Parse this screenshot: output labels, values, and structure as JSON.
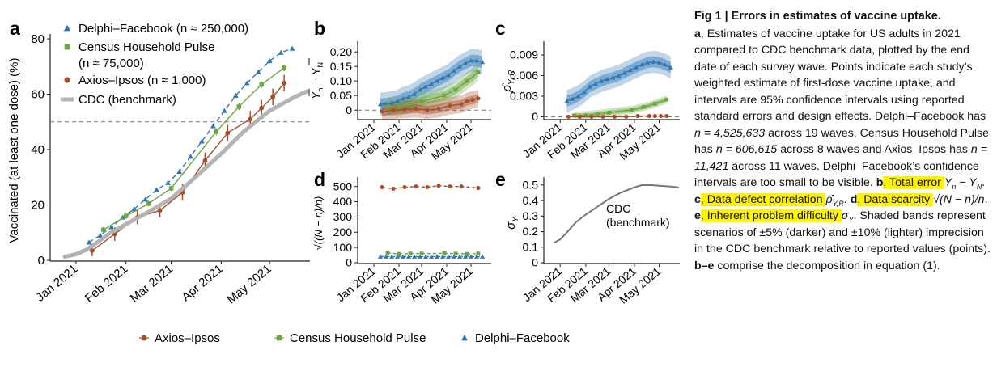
{
  "colors": {
    "delphi": "#2f77b4",
    "census": "#6da540",
    "axios": "#a3502b",
    "cdc": "#b3b3b3",
    "highlight": "#fff200"
  },
  "legend_bottom": [
    "Axios–Ipsos",
    "Census Household Pulse",
    "Delphi–Facebook"
  ],
  "chart_data": [
    {
      "id": "a",
      "panel_letter": "a",
      "type": "line",
      "ylabel": "Vaccinated (at least one dose) (%)",
      "xlabel": "",
      "x_ticks": [
        "Jan 2021",
        "Feb 2021",
        "Mar 2021",
        "Apr 2021",
        "May 2021"
      ],
      "y_ticks": [
        "0",
        "20",
        "40",
        "60",
        "80"
      ],
      "ylim": [
        0,
        80
      ],
      "xlim": [
        "2020-12-20",
        "2021-05-26"
      ],
      "reference_line": 50,
      "legend_position": "top-left",
      "legend": [
        {
          "label": "Delphi–Facebook",
          "n_text": "(n ≈ 250,000)"
        },
        {
          "label": "Census Household Pulse",
          "n_text": "(n ≈ 75,000)"
        },
        {
          "label": "Axios–Ipsos",
          "n_text": "(n ≈ 1,000)"
        },
        {
          "label": "CDC (benchmark)",
          "n_text": ""
        }
      ],
      "series": [
        {
          "name": "Delphi–Facebook",
          "marker": "triangle",
          "x": [
            "2021-01-09",
            "2021-01-16",
            "2021-01-23",
            "2021-01-30",
            "2021-02-06",
            "2021-02-13",
            "2021-02-20",
            "2021-02-27",
            "2021-03-06",
            "2021-03-13",
            "2021-03-20",
            "2021-03-27",
            "2021-04-03",
            "2021-04-10",
            "2021-04-17",
            "2021-04-24",
            "2021-05-01",
            "2021-05-08",
            "2021-05-15"
          ],
          "y": [
            6.5,
            9,
            12,
            15.5,
            18.5,
            22,
            25.5,
            28,
            32,
            37.5,
            43,
            48.5,
            54,
            59.5,
            64,
            68,
            72,
            75,
            76.5
          ]
        },
        {
          "name": "Census Household Pulse",
          "marker": "square",
          "x": [
            "2021-01-18",
            "2021-02-01",
            "2021-02-15",
            "2021-03-01",
            "2021-03-29",
            "2021-04-12",
            "2021-04-26",
            "2021-05-10"
          ],
          "y": [
            11,
            16,
            20.5,
            26,
            46.5,
            55.5,
            63.5,
            69.5
          ],
          "err": [
            1,
            1,
            1,
            1,
            1.2,
            1.2,
            1.2,
            1.2
          ]
        },
        {
          "name": "Axios–Ipsos",
          "marker": "circle",
          "x": [
            "2021-01-11",
            "2021-01-25",
            "2021-02-08",
            "2021-02-22",
            "2021-03-08",
            "2021-03-22",
            "2021-04-05",
            "2021-04-19",
            "2021-04-26",
            "2021-05-03",
            "2021-05-10"
          ],
          "y": [
            3.5,
            9.5,
            15.5,
            18,
            24.5,
            36,
            46,
            51,
            55,
            59,
            64
          ],
          "err": [
            2,
            2.5,
            2.5,
            2.5,
            3,
            3,
            3,
            3,
            3,
            3,
            3
          ]
        },
        {
          "name": "CDC (benchmark)",
          "marker": "none",
          "x": [
            "2020-12-25",
            "2021-01-01",
            "2021-01-08",
            "2021-01-15",
            "2021-01-22",
            "2021-02-01",
            "2021-02-15",
            "2021-03-01",
            "2021-03-15",
            "2021-04-01",
            "2021-04-15",
            "2021-05-01",
            "2021-05-15",
            "2021-05-24"
          ],
          "y": [
            1.3,
            2.2,
            4.0,
            6.8,
            9.8,
            13.0,
            17.5,
            22.3,
            29.5,
            38.5,
            46.5,
            54.0,
            58.5,
            61.0
          ]
        }
      ]
    },
    {
      "id": "b",
      "panel_letter": "b",
      "type": "line",
      "ylabel_main": "Y",
      "ylabel_suffix": "n",
      "ylabel_rest": " − Y",
      "ylabel_suffix2": "N",
      "x_ticks": [
        "Jan 2021",
        "Feb 2021",
        "Mar 2021",
        "Apr 2021",
        "May 2021"
      ],
      "y_ticks": [
        "0",
        "0.05",
        "0.10",
        "0.15",
        "0.20"
      ],
      "ylim": [
        -0.03,
        0.22
      ],
      "xlim": [
        "2020-12-20",
        "2021-05-26"
      ],
      "reference_line": 0,
      "series": [
        {
          "name": "Delphi–Facebook",
          "marker": "triangle",
          "x": [
            "2021-01-09",
            "2021-01-16",
            "2021-01-23",
            "2021-01-30",
            "2021-02-06",
            "2021-02-13",
            "2021-02-20",
            "2021-02-27",
            "2021-03-06",
            "2021-03-13",
            "2021-03-20",
            "2021-03-27",
            "2021-04-03",
            "2021-04-10",
            "2021-04-17",
            "2021-04-24",
            "2021-05-01",
            "2021-05-08",
            "2021-05-15"
          ],
          "y": [
            0.02,
            0.022,
            0.025,
            0.03,
            0.04,
            0.045,
            0.055,
            0.07,
            0.08,
            0.09,
            0.1,
            0.11,
            0.12,
            0.135,
            0.15,
            0.16,
            0.17,
            0.17,
            0.165
          ],
          "band_inner": 0.02,
          "band_outer": 0.04
        },
        {
          "name": "Census Household Pulse",
          "marker": "square",
          "x": [
            "2021-01-18",
            "2021-02-01",
            "2021-02-15",
            "2021-03-01",
            "2021-03-29",
            "2021-04-12",
            "2021-04-26",
            "2021-05-10"
          ],
          "y": [
            0.012,
            0.01,
            0.02,
            0.03,
            0.05,
            0.07,
            0.1,
            0.13
          ],
          "band_inner": 0.015,
          "band_outer": 0.03
        },
        {
          "name": "Axios–Ipsos",
          "marker": "circle",
          "x": [
            "2021-01-11",
            "2021-01-25",
            "2021-02-08",
            "2021-02-22",
            "2021-03-08",
            "2021-03-22",
            "2021-04-05",
            "2021-04-19",
            "2021-04-26",
            "2021-05-03",
            "2021-05-10"
          ],
          "y": [
            -0.005,
            0.0,
            0.002,
            0.005,
            0.0,
            0.005,
            0.015,
            0.02,
            0.03,
            0.035,
            0.04
          ],
          "band_inner": 0.015,
          "band_outer": 0.03
        }
      ]
    },
    {
      "id": "c",
      "panel_letter": "c",
      "type": "line",
      "ylabel_main": "ρ̂",
      "ylabel_suffix": "Y, R",
      "x_ticks": [
        "Jan 2021",
        "Feb 2021",
        "Mar 2021",
        "Apr 2021",
        "May 2021"
      ],
      "y_ticks": [
        "0",
        "0.003",
        "0.006",
        "0.009"
      ],
      "ylim": [
        -0.0003,
        0.0103
      ],
      "xlim": [
        "2020-12-20",
        "2021-05-26"
      ],
      "reference_line": 0,
      "series": [
        {
          "name": "Delphi–Facebook",
          "marker": "triangle",
          "x": [
            "2021-01-09",
            "2021-01-16",
            "2021-01-23",
            "2021-01-30",
            "2021-02-06",
            "2021-02-13",
            "2021-02-20",
            "2021-02-27",
            "2021-03-06",
            "2021-03-13",
            "2021-03-20",
            "2021-03-27",
            "2021-04-03",
            "2021-04-10",
            "2021-04-17",
            "2021-04-24",
            "2021-05-01",
            "2021-05-08",
            "2021-05-15"
          ],
          "y": [
            0.0023,
            0.0026,
            0.003,
            0.0036,
            0.0044,
            0.0048,
            0.0052,
            0.0055,
            0.0057,
            0.006,
            0.0064,
            0.0068,
            0.0072,
            0.0076,
            0.0079,
            0.008,
            0.0079,
            0.0076,
            0.0072
          ],
          "band_inner": 0.0008,
          "band_outer": 0.0016
        },
        {
          "name": "Census Household Pulse",
          "marker": "square",
          "x": [
            "2021-01-18",
            "2021-02-01",
            "2021-02-15",
            "2021-03-01",
            "2021-03-29",
            "2021-04-12",
            "2021-04-26",
            "2021-05-10"
          ],
          "y": [
            0.0002,
            0.0002,
            0.0004,
            0.0006,
            0.001,
            0.0014,
            0.0019,
            0.0025
          ],
          "band_inner": 0.0003,
          "band_outer": 0.0006
        },
        {
          "name": "Axios–Ipsos",
          "marker": "circle",
          "x": [
            "2021-01-11",
            "2021-01-25",
            "2021-02-08",
            "2021-02-22",
            "2021-03-08",
            "2021-03-22",
            "2021-04-05",
            "2021-04-19",
            "2021-04-26",
            "2021-05-03",
            "2021-05-10"
          ],
          "y": [
            0.0,
            0.0,
            0.0,
            0.0,
            0.0,
            0.0,
            0.0001,
            0.0001,
            0.0001,
            0.0001,
            0.0001
          ],
          "band_inner": 0,
          "band_outer": 0
        }
      ]
    },
    {
      "id": "d",
      "panel_letter": "d",
      "type": "line",
      "ylabel_main": "√((N − n)/n)",
      "x_ticks": [
        "Jan 2021",
        "Feb 2021",
        "Mar 2021",
        "Apr 2021",
        "May 2021"
      ],
      "y_ticks": [
        "0",
        "100",
        "200",
        "300",
        "400",
        "500"
      ],
      "ylim": [
        0,
        530
      ],
      "xlim": [
        "2020-12-20",
        "2021-05-26"
      ],
      "series": [
        {
          "name": "Axios–Ipsos",
          "marker": "circle",
          "x": [
            "2021-01-11",
            "2021-01-25",
            "2021-02-08",
            "2021-02-22",
            "2021-03-08",
            "2021-03-22",
            "2021-04-05",
            "2021-04-19",
            "2021-05-10"
          ],
          "y": [
            495,
            485,
            495,
            500,
            495,
            505,
            500,
            500,
            490
          ]
        },
        {
          "name": "Census Household Pulse",
          "marker": "square",
          "x": [
            "2021-01-18",
            "2021-02-01",
            "2021-02-15",
            "2021-03-01",
            "2021-03-29",
            "2021-04-12",
            "2021-04-26",
            "2021-05-10"
          ],
          "y": [
            65,
            58,
            60,
            60,
            62,
            60,
            58,
            60
          ]
        },
        {
          "name": "Delphi–Facebook",
          "marker": "triangle",
          "x": [
            "2021-01-09",
            "2021-01-16",
            "2021-01-23",
            "2021-01-30",
            "2021-02-06",
            "2021-02-13",
            "2021-02-20",
            "2021-02-27",
            "2021-03-06",
            "2021-03-13",
            "2021-03-20",
            "2021-03-27",
            "2021-04-03",
            "2021-04-10",
            "2021-04-17",
            "2021-04-24",
            "2021-05-01",
            "2021-05-08",
            "2021-05-15"
          ],
          "y": [
            40,
            40,
            40,
            40,
            40,
            40,
            40,
            40,
            40,
            40,
            40,
            40,
            40,
            40,
            40,
            40,
            40,
            40,
            40
          ]
        }
      ]
    },
    {
      "id": "e",
      "panel_letter": "e",
      "type": "line",
      "ylabel_main": "σ",
      "ylabel_suffix": "Y",
      "annotation": [
        "CDC",
        "(benchmark)"
      ],
      "x_ticks": [
        "Jan 2021",
        "Feb 2021",
        "Mar 2021",
        "Apr 2021",
        "May 2021"
      ],
      "y_ticks": [
        "0",
        "0.1",
        "0.2",
        "0.3",
        "0.4",
        "0.5"
      ],
      "ylim": [
        0,
        0.52
      ],
      "xlim": [
        "2020-12-20",
        "2021-05-26"
      ],
      "series": [
        {
          "name": "CDC (benchmark)",
          "marker": "none",
          "x": [
            "2020-12-25",
            "2021-01-01",
            "2021-01-10",
            "2021-01-20",
            "2021-02-01",
            "2021-02-15",
            "2021-03-01",
            "2021-03-15",
            "2021-04-01",
            "2021-04-10",
            "2021-04-20",
            "2021-05-01",
            "2021-05-15",
            "2021-05-24"
          ],
          "y": [
            0.13,
            0.15,
            0.2,
            0.26,
            0.31,
            0.36,
            0.41,
            0.45,
            0.485,
            0.499,
            0.5,
            0.495,
            0.49,
            0.485
          ]
        }
      ]
    }
  ],
  "caption": {
    "title": "Fig 1 | Errors in estimates of vaccine uptake.",
    "p1_a": "a",
    "p1": ", Estimates of vaccine uptake for US adults in 2021 compared to CDC benchmark data, plotted by the end date of each survey wave. Points indicate each study’s weighted estimate of first-dose vaccine uptake, and intervals are 95% confidence intervals using reported standard errors and design effects. Delphi–Facebook has ",
    "n1": "n = 4,525,633",
    "p2": " across 19 waves, Census Household Pulse has ",
    "n2": "n = 606,615",
    "p3": " across 8 waves and Axios–Ipsos has ",
    "n3": "n = 11,421",
    "p4": " across 11 waves. Delphi–Facebook’s confidence intervals are too small to be visible. ",
    "b_letter": "b",
    "b_text": ", Total error ",
    "c_letter": "c",
    "c_text": ", Data defect correlation ",
    "d_letter": "d",
    "d_text": ", Data scarcity ",
    "d_math": "√(N − n)/n",
    "e_letter": "e",
    "e_text": ", Inherent problem difficulty ",
    "p5": " Shaded bands represent scenarios of ±5% (darker) and ±10% (lighter) imprecision in the CDC benchmark relative to reported values (points). ",
    "be_letters": "b–e",
    "p6": " comprise the decomposition in equation (1)."
  }
}
